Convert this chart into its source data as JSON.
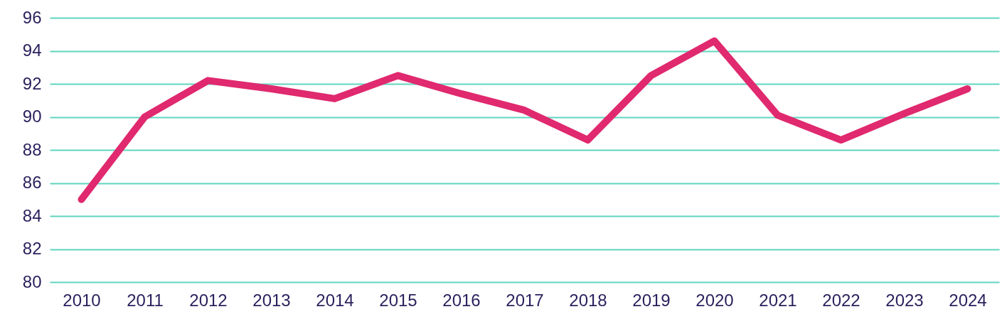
{
  "chart_data": {
    "type": "line",
    "categories": [
      "2010",
      "2011",
      "2012",
      "2013",
      "2014",
      "2015",
      "2016",
      "2017",
      "2018",
      "2019",
      "2020",
      "2021",
      "2022",
      "2023",
      "2024"
    ],
    "series": [
      {
        "color": "#e0296e",
        "values": [
          85.0,
          90.0,
          92.2,
          91.7,
          91.1,
          92.5,
          91.4,
          90.4,
          88.6,
          92.5,
          94.6,
          90.1,
          88.6,
          90.2,
          91.7
        ]
      }
    ],
    "ylim": [
      80,
      96
    ],
    "yticks": [
      80,
      82,
      84,
      86,
      88,
      90,
      92,
      94,
      96
    ],
    "grid": "y",
    "legend": false,
    "marker": "none",
    "line_style": "solid"
  }
}
